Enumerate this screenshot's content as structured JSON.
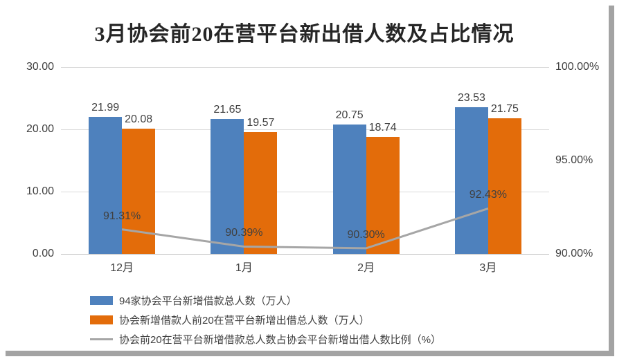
{
  "title": "3月协会前20在营平台新出借人数及占比情况",
  "chart_data": {
    "type": "bar+line combo",
    "title": "3月协会前20在营平台新出借人数及占比情况",
    "categories": [
      "12月",
      "1月",
      "2月",
      "3月"
    ],
    "series": [
      {
        "name": "94家协会平台新增借款总人数（万人）",
        "type": "bar",
        "axis": "left",
        "color": "#4e81bd",
        "values": [
          21.99,
          21.65,
          20.75,
          23.53
        ],
        "labels": [
          "21.99",
          "21.65",
          "20.75",
          "23.53"
        ]
      },
      {
        "name": "协会新增借款人前20在营平台新增出借总人数（万人）",
        "type": "bar",
        "axis": "left",
        "color": "#e36c0a",
        "values": [
          20.08,
          19.57,
          18.74,
          21.75
        ],
        "labels": [
          "20.08",
          "19.57",
          "18.74",
          "21.75"
        ]
      },
      {
        "name": "协会前20在营平台新增借款总人数占协会平台新增出借人数比例（%）",
        "type": "line",
        "axis": "right",
        "color": "#a6a6a6",
        "values": [
          91.31,
          90.39,
          90.3,
          92.43
        ],
        "labels": [
          "91.31%",
          "90.39%",
          "90.30%",
          "92.43%"
        ]
      }
    ],
    "left_axis": {
      "min": 0,
      "max": 30,
      "ticks": [
        "0.00",
        "10.00",
        "20.00",
        "30.00"
      ]
    },
    "right_axis": {
      "min": 90,
      "max": 100,
      "ticks": [
        "90.00%",
        "95.00%",
        "100.00%"
      ]
    },
    "grid": true,
    "legend_position": "bottom-left"
  }
}
